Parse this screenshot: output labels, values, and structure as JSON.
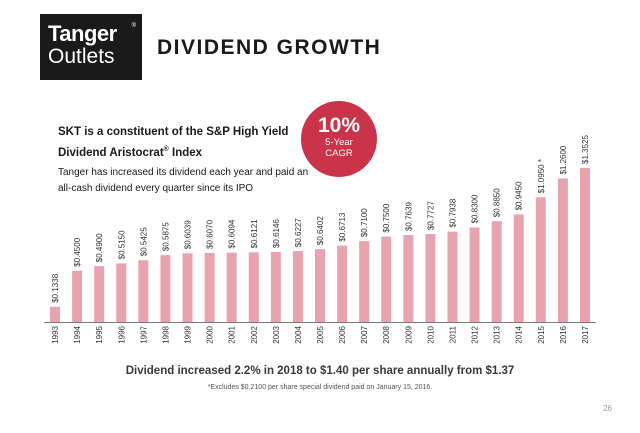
{
  "logo": {
    "line1": "Tanger",
    "line2": "Outlets",
    "mark": "®"
  },
  "slide": {
    "title": "DIVIDEND GROWTH",
    "page_number": "26",
    "bottom_note": "Dividend increased 2.2% in 2018 to $1.40 per share annually from $1.37",
    "footnote": "*Excludes $0.2100 per share special dividend paid on January 15, 2016."
  },
  "info": {
    "headline_main": "SKT is a constituent of the S&P High Yield Dividend Aristocrat",
    "headline_sup": "®",
    "headline_end": " Index",
    "text": "Tanger has increased its dividend each year and paid an all-cash dividend every quarter since its IPO"
  },
  "cagr_badge": {
    "value": "10%",
    "line1": "5-Year",
    "line2": "CAGR"
  },
  "colors": {
    "bar": "#e8a4ae",
    "badge": "#c9344a",
    "axis": "#7a7a7a"
  },
  "chart_data": {
    "type": "bar",
    "title": "",
    "xlabel": "",
    "ylabel": "",
    "categories": [
      "1993",
      "1994",
      "1995",
      "1996",
      "1997",
      "1998",
      "1999",
      "2000",
      "2001",
      "2002",
      "2003",
      "2004",
      "2005",
      "2006",
      "2007",
      "2008",
      "2009",
      "2010",
      "2011",
      "2012",
      "2013",
      "2014",
      "2015",
      "2016",
      "2017"
    ],
    "values": [
      0.1338,
      0.45,
      0.49,
      0.515,
      0.5425,
      0.5875,
      0.6039,
      0.607,
      0.6094,
      0.6121,
      0.6146,
      0.6227,
      0.6402,
      0.6713,
      0.71,
      0.75,
      0.7639,
      0.7727,
      0.7938,
      0.83,
      0.885,
      0.945,
      1.095,
      1.26,
      1.3525
    ],
    "labels": [
      "$0.1338",
      "$0.4500",
      "$0.4900",
      "$0.5150",
      "$0.5425",
      "$0.5875",
      "$0.6039",
      "$0.6070",
      "$0.6094",
      "$0.6121",
      "$0.6146",
      "$0.6227",
      "$0.6402",
      "$0.6713",
      "$0.7100",
      "$0.7500",
      "$0.7639",
      "$0.7727",
      "$0.7938",
      "$0.8300",
      "$0.8850",
      "$0.9450",
      "$1.0950 *",
      "$1.2600",
      "$1.3525"
    ],
    "ylim": [
      0,
      1.4
    ],
    "grid": false,
    "legend": "none"
  }
}
